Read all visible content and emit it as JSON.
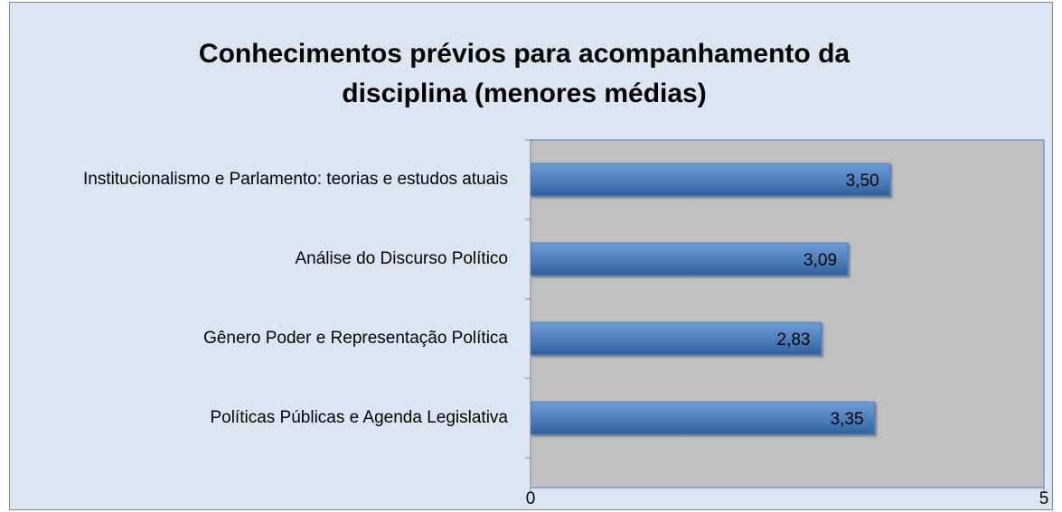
{
  "chart_data": {
    "type": "bar",
    "orientation": "horizontal",
    "title": "Conhecimentos prévios para acompanhamento da disciplina (menores médias)",
    "categories": [
      "Institucionalismo e Parlamento: teorias e estudos atuais",
      "Análise do Discurso Político",
      "Gênero Poder e Representação Política",
      "Políticas Públicas e Agenda Legislativa"
    ],
    "values": [
      3.5,
      3.09,
      2.83,
      3.35
    ],
    "value_labels": [
      "3,50",
      "3,09",
      "2,83",
      "3,35"
    ],
    "color": "#4f81bd",
    "xlim": [
      0,
      5
    ],
    "xticks": [
      0,
      5
    ],
    "grid": false
  }
}
